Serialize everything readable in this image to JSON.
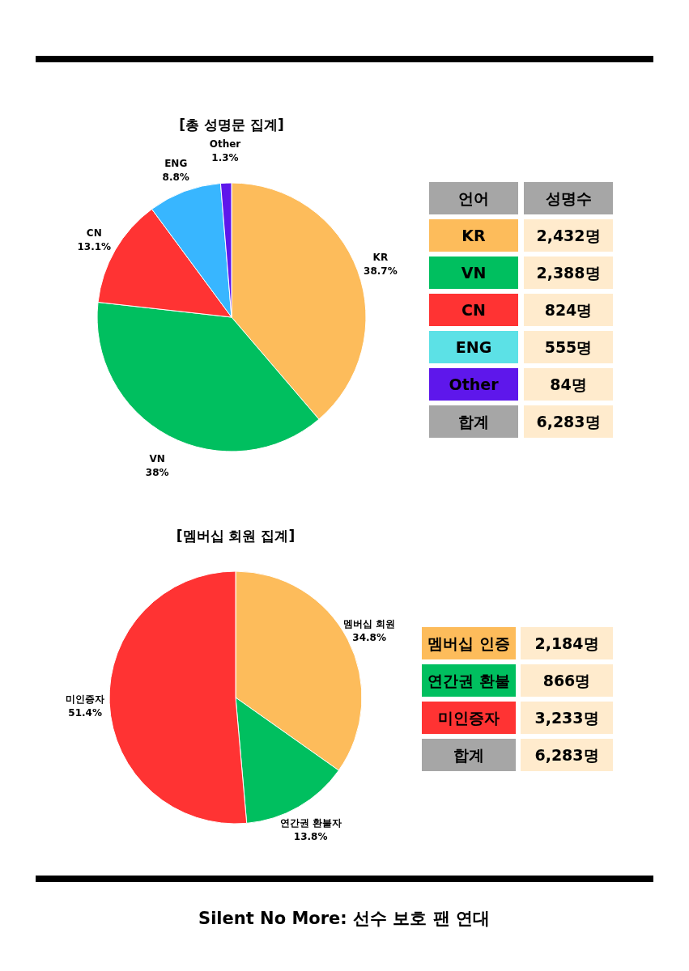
{
  "chart_data": [
    {
      "type": "pie",
      "title": "[총 성명문 집계]",
      "categories": [
        "KR",
        "VN",
        "CN",
        "ENG",
        "Other"
      ],
      "values": [
        38.7,
        38,
        13.1,
        8.8,
        1.3
      ],
      "value_labels": [
        "38.7%",
        "38%",
        "13.1%",
        "8.8%",
        "1.3%"
      ],
      "colors": [
        "#fdbc5b",
        "#00bf5f",
        "#ff3333",
        "#38b6ff",
        "#5e17eb"
      ]
    },
    {
      "type": "other",
      "categories": [
        "KR",
        "VN",
        "CN",
        "ENG",
        "Other",
        "합계"
      ],
      "colors": [
        "#fdbc5b",
        "#00bf5f",
        "#ff3333",
        "#5ce1e6",
        "#5e17eb",
        "#a6a6a6"
      ],
      "annotations": [
        "언어",
        "성명수",
        "2,432명",
        "2,388명",
        "824명",
        "555명",
        "84명",
        "6,283명"
      ]
    },
    {
      "type": "pie",
      "title": "[멤버십 회원 집계]",
      "categories": [
        "멤버십 회원",
        "연간권 환불자",
        "미인증자"
      ],
      "values": [
        34.8,
        13.8,
        51.4
      ],
      "value_labels": [
        "34.8%",
        "13.8%",
        "51.4%"
      ],
      "colors": [
        "#fdbc5b",
        "#00bf5f",
        "#ff3333"
      ]
    },
    {
      "type": "other",
      "categories": [
        "멤버십 인증",
        "연간권 환불",
        "미인증자",
        "합계"
      ],
      "colors": [
        "#fdbc5b",
        "#00bf5f",
        "#ff3333",
        "#a6a6a6"
      ],
      "annotations": [
        "2,184명",
        "866명",
        "3,233명",
        "6,283명",
        "Silent No More: 선수 보호 팬 연대"
      ]
    }
  ]
}
